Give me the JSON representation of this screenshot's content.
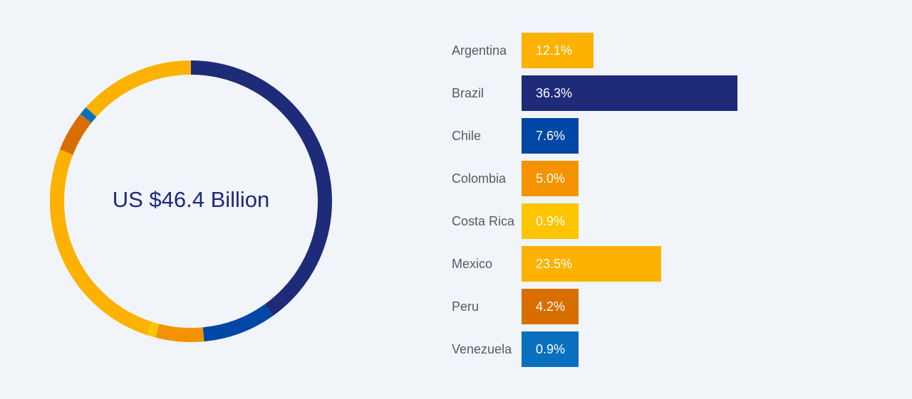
{
  "chart_data": {
    "type": "bar",
    "total_label": "US $46.4 Billion",
    "categories": [
      "Argentina",
      "Brazil",
      "Chile",
      "Colombia",
      "Costa Rica",
      "Mexico",
      "Peru",
      "Venezuela"
    ],
    "values": [
      12.1,
      36.3,
      7.6,
      5.0,
      0.9,
      23.5,
      4.2,
      0.9
    ],
    "value_labels": [
      "12.1%",
      "36.3%",
      "7.6%",
      "5.0%",
      "0.9%",
      "23.5%",
      "4.2%",
      "0.9%"
    ],
    "colors": [
      "#fdb100",
      "#1e2b78",
      "#0047a6",
      "#f59200",
      "#fcc500",
      "#fdb100",
      "#d96e00",
      "#0a6fbe"
    ],
    "donut": {
      "type": "pie",
      "order": [
        "Brazil",
        "Chile",
        "Colombia",
        "Costa Rica",
        "Mexico",
        "Peru",
        "Venezuela",
        "Argentina"
      ]
    }
  }
}
